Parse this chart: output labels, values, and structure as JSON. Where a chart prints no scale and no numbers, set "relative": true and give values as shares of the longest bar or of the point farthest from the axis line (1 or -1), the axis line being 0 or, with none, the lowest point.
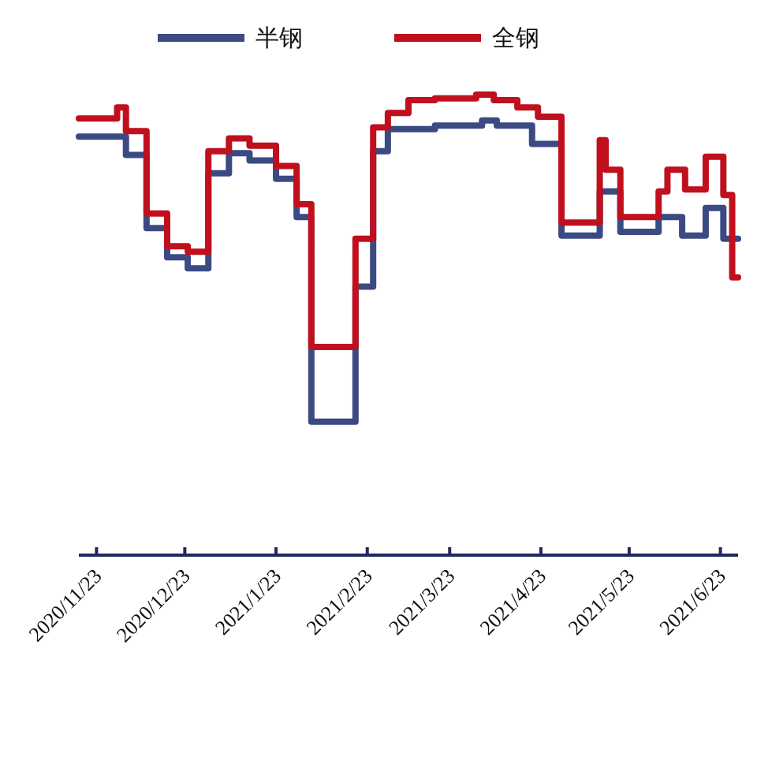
{
  "chart_data": {
    "type": "step",
    "relative": true,
    "legend": "top",
    "xlim": [
      "2020-11-17",
      "2021-06-29"
    ],
    "xticks": [
      {
        "value": "2020-11-23",
        "label": "2020/11/23"
      },
      {
        "value": "2020-12-23",
        "label": "2020/12/23"
      },
      {
        "value": "2021-01-23",
        "label": "2021/1/23"
      },
      {
        "value": "2021-02-23",
        "label": "2021/2/23"
      },
      {
        "value": "2021-03-23",
        "label": "2021/3/23"
      },
      {
        "value": "2021-04-23",
        "label": "2021/4/23"
      },
      {
        "value": "2021-05-23",
        "label": "2021/5/23"
      },
      {
        "value": "2021-06-23",
        "label": "2021/6/23"
      }
    ],
    "series": [
      {
        "name": "半钢",
        "color": "#3b4a82",
        "x": [
          "2020-11-17",
          "2020-12-03",
          "2020-12-10",
          "2020-12-17",
          "2020-12-24",
          "2020-12-31",
          "2021-01-07",
          "2021-01-14",
          "2021-01-23",
          "2021-01-30",
          "2021-02-04",
          "2021-02-19",
          "2021-02-25",
          "2021-03-02",
          "2021-03-18",
          "2021-04-03",
          "2021-04-08",
          "2021-04-20",
          "2021-04-30",
          "2021-05-13",
          "2021-05-20",
          "2021-06-02",
          "2021-06-10",
          "2021-06-18",
          "2021-06-24",
          "2021-06-29"
        ],
        "values": [
          0.909,
          0.869,
          0.71,
          0.647,
          0.623,
          0.829,
          0.873,
          0.857,
          0.817,
          0.734,
          0.29,
          0.583,
          0.877,
          0.925,
          0.933,
          0.944,
          0.933,
          0.893,
          0.694,
          0.79,
          0.702,
          0.734,
          0.694,
          0.754,
          0.687,
          0.687
        ]
      },
      {
        "name": "全钢",
        "color": "#c0101e",
        "x": [
          "2020-11-17",
          "2020-11-30",
          "2020-12-03",
          "2020-12-10",
          "2020-12-17",
          "2020-12-24",
          "2020-12-31",
          "2021-01-07",
          "2021-01-14",
          "2021-01-23",
          "2021-01-30",
          "2021-02-04",
          "2021-02-19",
          "2021-02-25",
          "2021-03-02",
          "2021-03-09",
          "2021-03-18",
          "2021-04-01",
          "2021-04-07",
          "2021-04-15",
          "2021-04-22",
          "2021-04-30",
          "2021-05-13",
          "2021-05-15",
          "2021-05-20",
          "2021-06-02",
          "2021-06-05",
          "2021-06-11",
          "2021-06-18",
          "2021-06-24",
          "2021-06-27",
          "2021-06-29"
        ],
        "values": [
          0.948,
          0.972,
          0.921,
          0.742,
          0.671,
          0.659,
          0.877,
          0.905,
          0.889,
          0.845,
          0.762,
          0.452,
          0.687,
          0.929,
          0.96,
          0.988,
          0.992,
          1,
          0.988,
          0.972,
          0.952,
          0.722,
          0.901,
          0.837,
          0.734,
          0.79,
          0.837,
          0.794,
          0.865,
          0.782,
          0.603,
          0.603
        ]
      }
    ]
  }
}
